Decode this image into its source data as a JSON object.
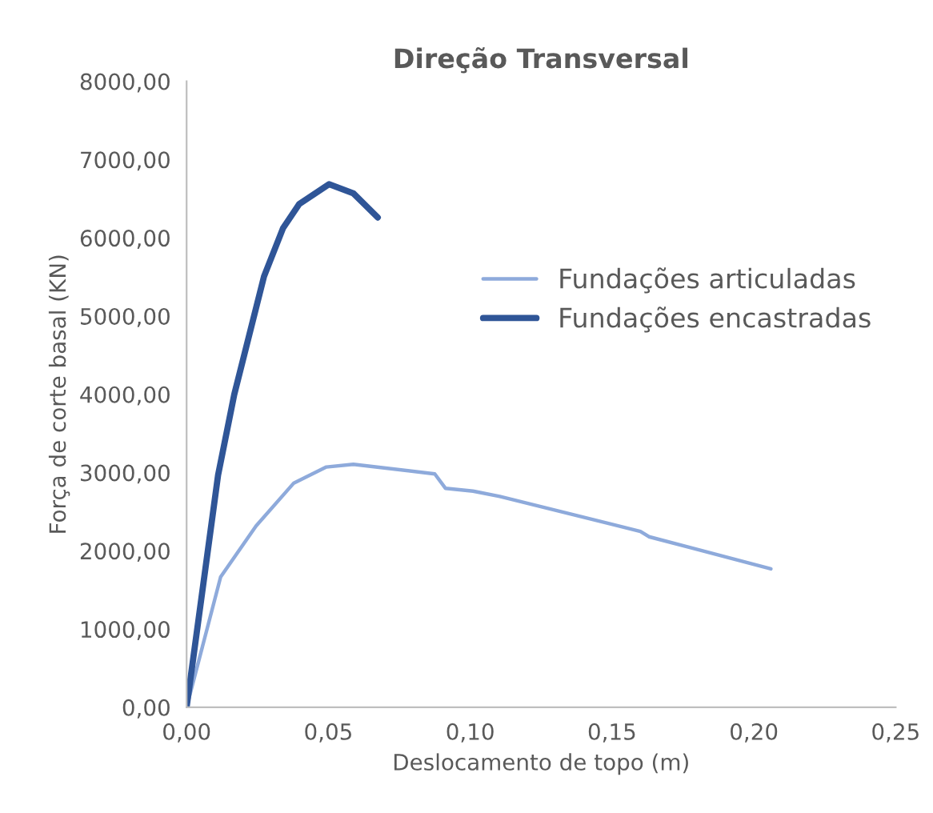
{
  "chart_data": {
    "type": "line",
    "title": "Direção Transversal",
    "xlabel": "Deslocamento de topo (m)",
    "ylabel": "Força de corte basal (KN)",
    "xlim": [
      0,
      0.25
    ],
    "xticks": [
      {
        "value": 0,
        "label": "0,00"
      },
      {
        "value": 0.05,
        "label": "0,05"
      },
      {
        "value": 0.1,
        "label": "0,10"
      },
      {
        "value": 0.15,
        "label": "0,15"
      },
      {
        "value": 0.2,
        "label": "0,20"
      },
      {
        "value": 0.25,
        "label": "0,25"
      }
    ],
    "ylim": [
      0,
      8000
    ],
    "yticks": [
      {
        "value": 0,
        "label": "0,00"
      },
      {
        "value": 1000,
        "label": "1000,00"
      },
      {
        "value": 2000,
        "label": "2000,00"
      },
      {
        "value": 3000,
        "label": "3000,00"
      },
      {
        "value": 4000,
        "label": "4000,00"
      },
      {
        "value": 5000,
        "label": "5000,00"
      },
      {
        "value": 6000,
        "label": "6000,00"
      },
      {
        "value": 7000,
        "label": "7000,00"
      },
      {
        "value": 8000,
        "label": "8000,00"
      }
    ],
    "grid": false,
    "legend": "right",
    "marker": "none",
    "line_style": "solid",
    "series": [
      {
        "name": "Fundações articuladas",
        "color": "#8eaadb",
        "x": [
          0,
          0.012,
          0.0245,
          0.0378,
          0.0493,
          0.0588,
          0.0875,
          0.0913,
          0.101,
          0.1104,
          0.16,
          0.163,
          0.1774,
          0.206
        ],
        "values": [
          0,
          1666,
          2318,
          2866,
          3071,
          3106,
          2983,
          2798,
          2763,
          2695,
          2248,
          2180,
          2043,
          1769
        ]
      },
      {
        "name": "Fundações encastradas",
        "color": "#2f5597",
        "x": [
          0,
          0.0111,
          0.0168,
          0.0273,
          0.034,
          0.0397,
          0.0502,
          0.0588,
          0.0674
        ],
        "values": [
          0,
          2968,
          3997,
          5507,
          6124,
          6431,
          6685,
          6568,
          6260
        ]
      }
    ]
  }
}
